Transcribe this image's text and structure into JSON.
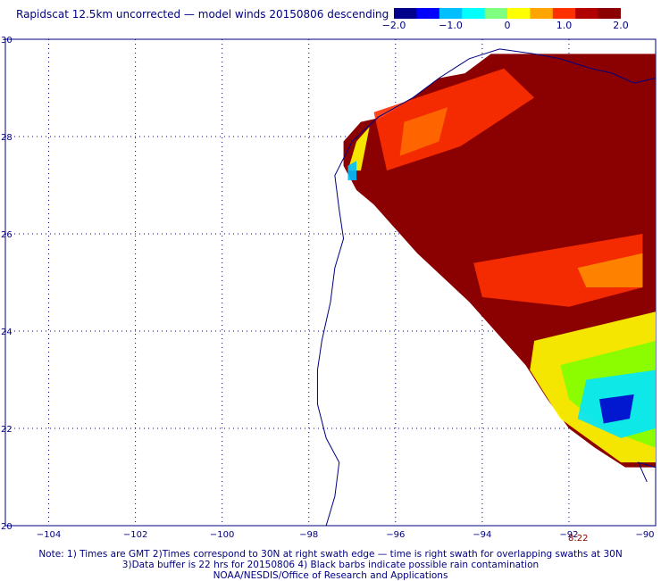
{
  "title": "Rapidscat 12.5km uncorrected — model winds 20150806 descending",
  "colorbar": {
    "ticks": [
      "−2.0",
      "−1.0",
      "0",
      "1.0",
      "2.0"
    ],
    "tick_values": [
      -2.0,
      -1.0,
      0,
      1.0,
      2.0
    ],
    "colors": [
      "#00008b",
      "#0000ff",
      "#00bfff",
      "#00ffff",
      "#7fff7f",
      "#ffff00",
      "#ffa500",
      "#ff3000",
      "#b00000",
      "#8b0000"
    ]
  },
  "map": {
    "lon_labels": [
      "−104",
      "−102",
      "−100",
      "−98",
      "−96",
      "−94",
      "−92",
      "−90"
    ],
    "lat_labels": [
      "30",
      "28",
      "26",
      "24",
      "22",
      "20"
    ],
    "lon_range": [
      -105,
      -90
    ],
    "lat_range": [
      20,
      30
    ],
    "grid": true,
    "swath_time": "8:22",
    "swath_fill_color": "#8b0000"
  },
  "notes": {
    "line1": "Note: 1) Times are GMT 2)Times correspond to 30N at right swath edge — time is right swath for overlapping swaths at 30N",
    "line2": "3)Data buffer is 22 hrs for 20150806 4) Black barbs indicate possible rain contamination",
    "line3": "NOAA/NESDIS/Office of Research and Applications"
  }
}
